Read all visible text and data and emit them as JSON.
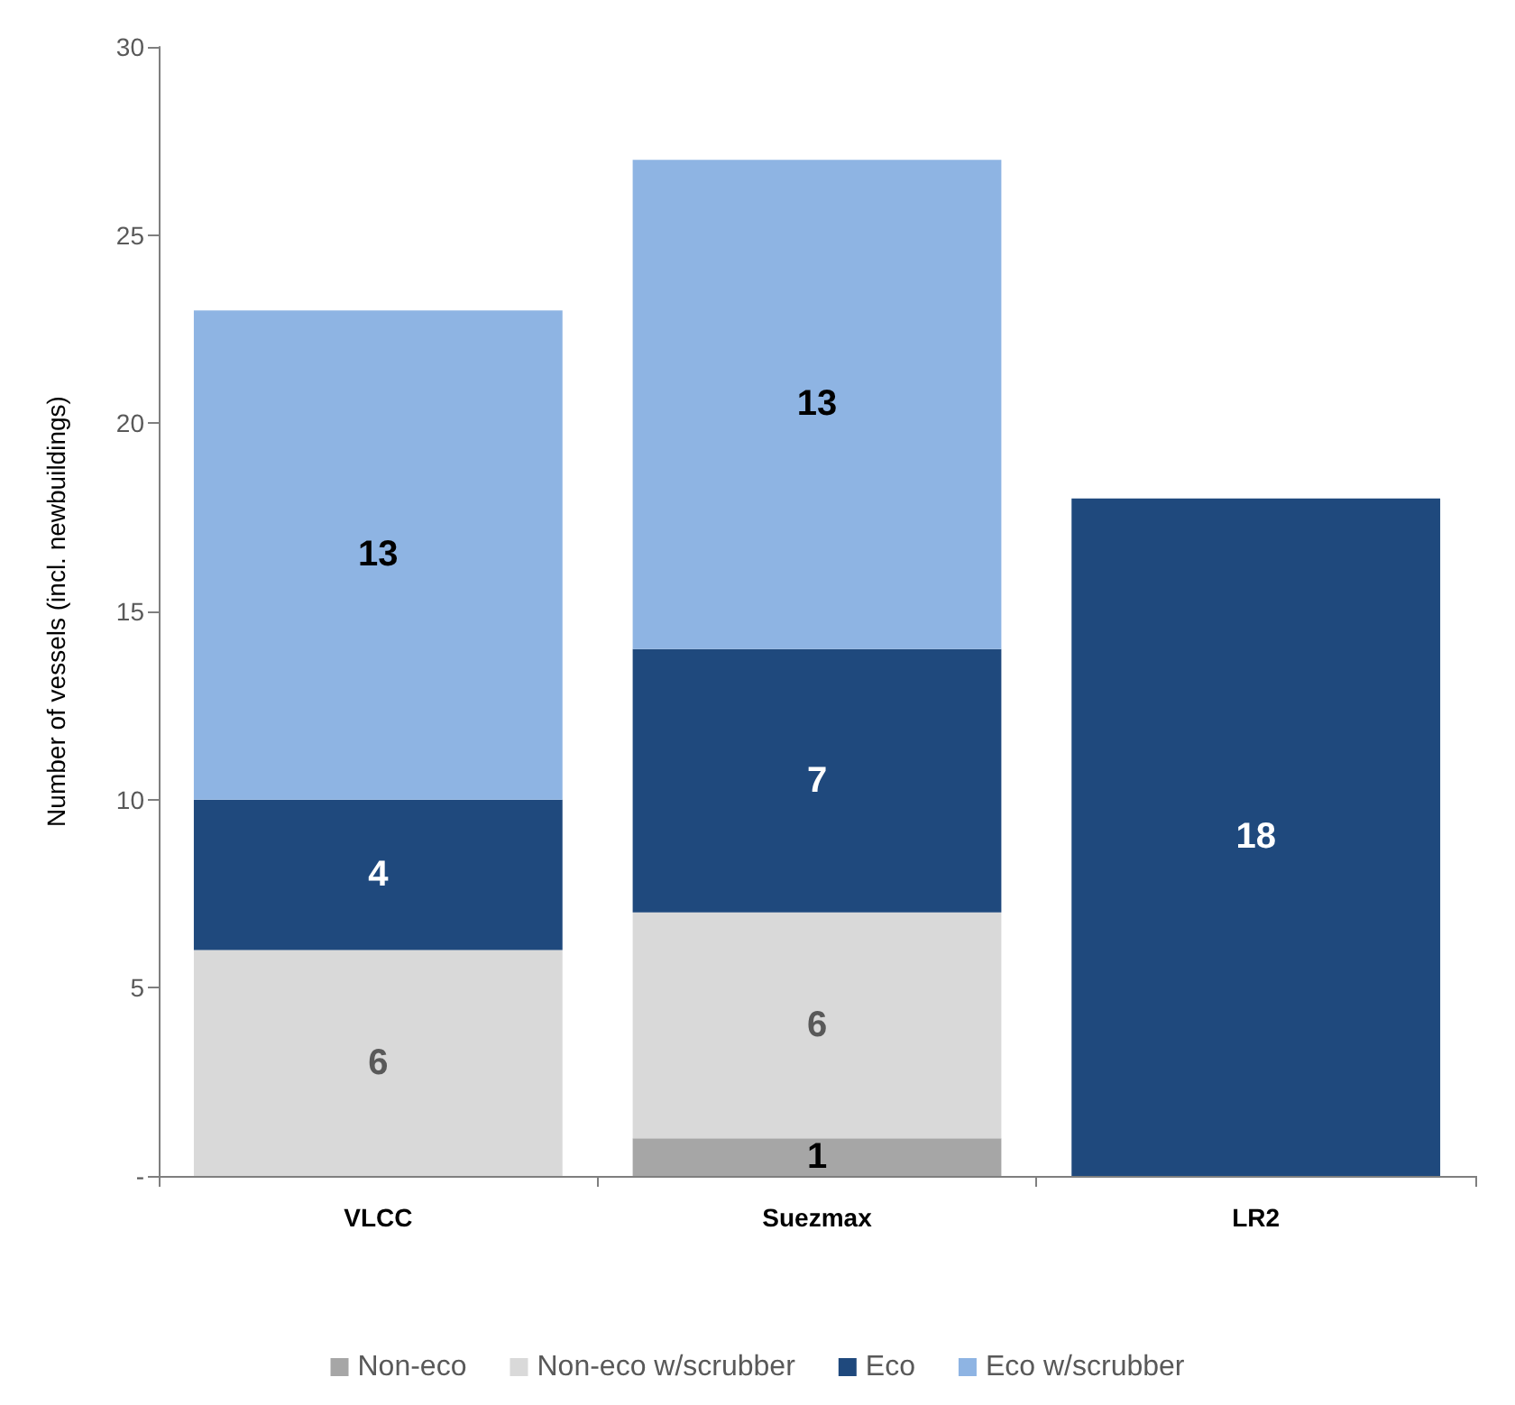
{
  "chart_data": {
    "type": "bar",
    "stacked": true,
    "ylabel": "Number of vessels (incl. newbuildings)",
    "categories": [
      "VLCC",
      "Suezmax",
      "LR2"
    ],
    "series": [
      {
        "name": "Non-eco",
        "color": "#a6a6a6",
        "values": [
          null,
          1,
          null
        ]
      },
      {
        "name": "Non-eco w/scrubber",
        "color": "#d9d9d9",
        "values": [
          6,
          6,
          null
        ]
      },
      {
        "name": "Eco",
        "color": "#1f497d",
        "values": [
          4,
          7,
          18
        ]
      },
      {
        "name": "Eco w/scrubber",
        "color": "#8eb4e3",
        "values": [
          13,
          13,
          null
        ]
      }
    ],
    "ylim": [
      0,
      30
    ],
    "yticks": [
      {
        "value": 0,
        "label": "-"
      },
      5,
      10,
      15,
      20,
      25,
      30
    ],
    "grid": false,
    "legend": "bottom",
    "data_labels": true
  }
}
